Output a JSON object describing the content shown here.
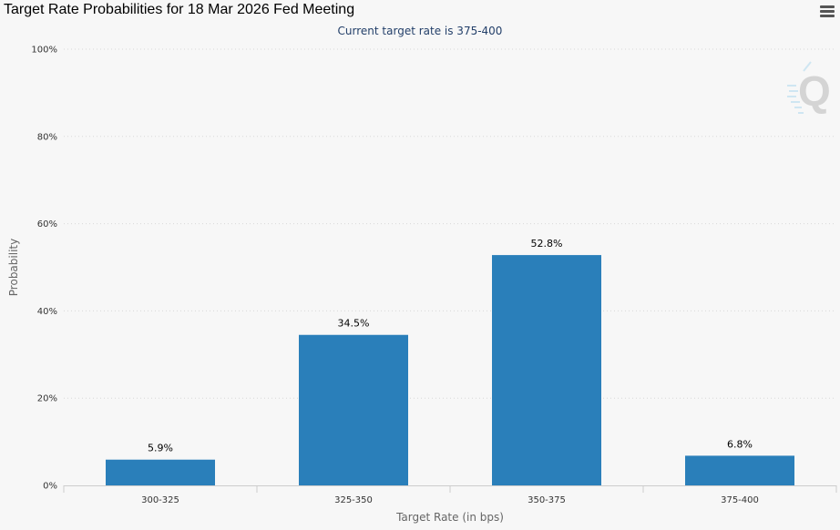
{
  "header": {
    "title": "Target Rate Probabilities for 18 Mar 2026 Fed Meeting",
    "subtitle": "Current target rate is 375-400"
  },
  "icons": {
    "menu": "hamburger-menu-icon",
    "watermark": "q-logo-watermark"
  },
  "colors": {
    "bar": "#2a7fba",
    "grid": "#d8d8d8",
    "subtitle": "#24406a"
  },
  "chart_data": {
    "type": "bar",
    "categories": [
      "300-325",
      "325-350",
      "350-375",
      "375-400"
    ],
    "values": [
      5.9,
      34.5,
      52.8,
      6.8
    ],
    "data_labels": [
      "5.9%",
      "34.5%",
      "52.8%",
      "6.8%"
    ],
    "title": "Target Rate Probabilities for 18 Mar 2026 Fed Meeting",
    "subtitle": "Current target rate is 375-400",
    "xlabel": "Target Rate (in bps)",
    "ylabel": "Probability",
    "ylim": [
      0,
      100
    ],
    "yticks": [
      0,
      20,
      40,
      60,
      80,
      100
    ],
    "ytick_labels": [
      "0%",
      "20%",
      "40%",
      "60%",
      "80%",
      "100%"
    ],
    "grid": true,
    "legend": "none"
  }
}
